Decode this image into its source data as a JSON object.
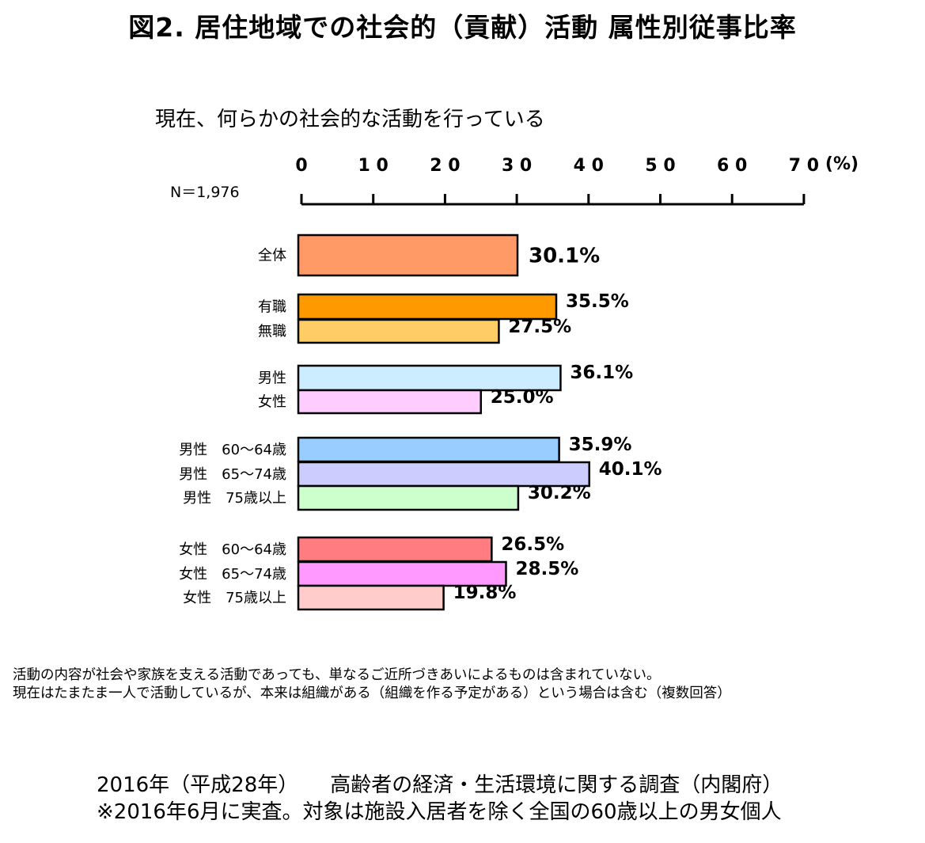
{
  "title": "図2. 居住地域での社会的（貢献）活動 属性別従事比率",
  "subtitle": "現在、何らかの社会的な活動を行っている",
  "n_label": "N＝1,976",
  "notes": [
    "活動の内容が社会や家族を支える活動であっても、単なるご近所づきあいによるものは含まれていない。",
    "現在はたまたま一人で活動しているが、本来は組織がある（組織を作る予定がある）という場合は含む（複数回答）"
  ],
  "source": {
    "year": "2016年（平成28年）",
    "survey": "高齢者の経済・生活環境に関する調査（内閣府）",
    "note": "※2016年6月に実査。対象は施設入居者を除く全国の60歳以上の男女個人"
  },
  "chart_data": {
    "type": "bar",
    "orientation": "horizontal",
    "xlim": [
      0,
      70
    ],
    "ticks": [
      0,
      10,
      20,
      30,
      40,
      50,
      60,
      70
    ],
    "tick_labels": [
      "0",
      "1 0",
      "2 0",
      "3 0",
      "4 0",
      "5 0",
      "6 0",
      "7 0"
    ],
    "unit_label": "(%)",
    "categories": [
      "全体",
      "有職",
      "無職",
      "男性",
      "女性",
      "男性　60～64歳",
      "男性　65～74歳",
      "男性　75歳以上",
      "女性　60～64歳",
      "女性　65～74歳",
      "女性　75歳以上"
    ],
    "values": [
      30.1,
      35.5,
      27.5,
      36.1,
      25.0,
      35.9,
      40.1,
      30.2,
      26.5,
      28.5,
      19.8
    ],
    "value_labels": [
      "30.1%",
      "35.5%",
      "27.5%",
      "36.1%",
      "25.0%",
      "35.9%",
      "40.1%",
      "30.2%",
      "26.5%",
      "28.5%",
      "19.8%"
    ],
    "colors": [
      "#FF9966",
      "#FF9900",
      "#FFCC66",
      "#CCECFF",
      "#FFCCFF",
      "#99CCFF",
      "#CCCCFF",
      "#CCFFCC",
      "#FF7C80",
      "#FF99FF",
      "#FFCCCC"
    ]
  }
}
